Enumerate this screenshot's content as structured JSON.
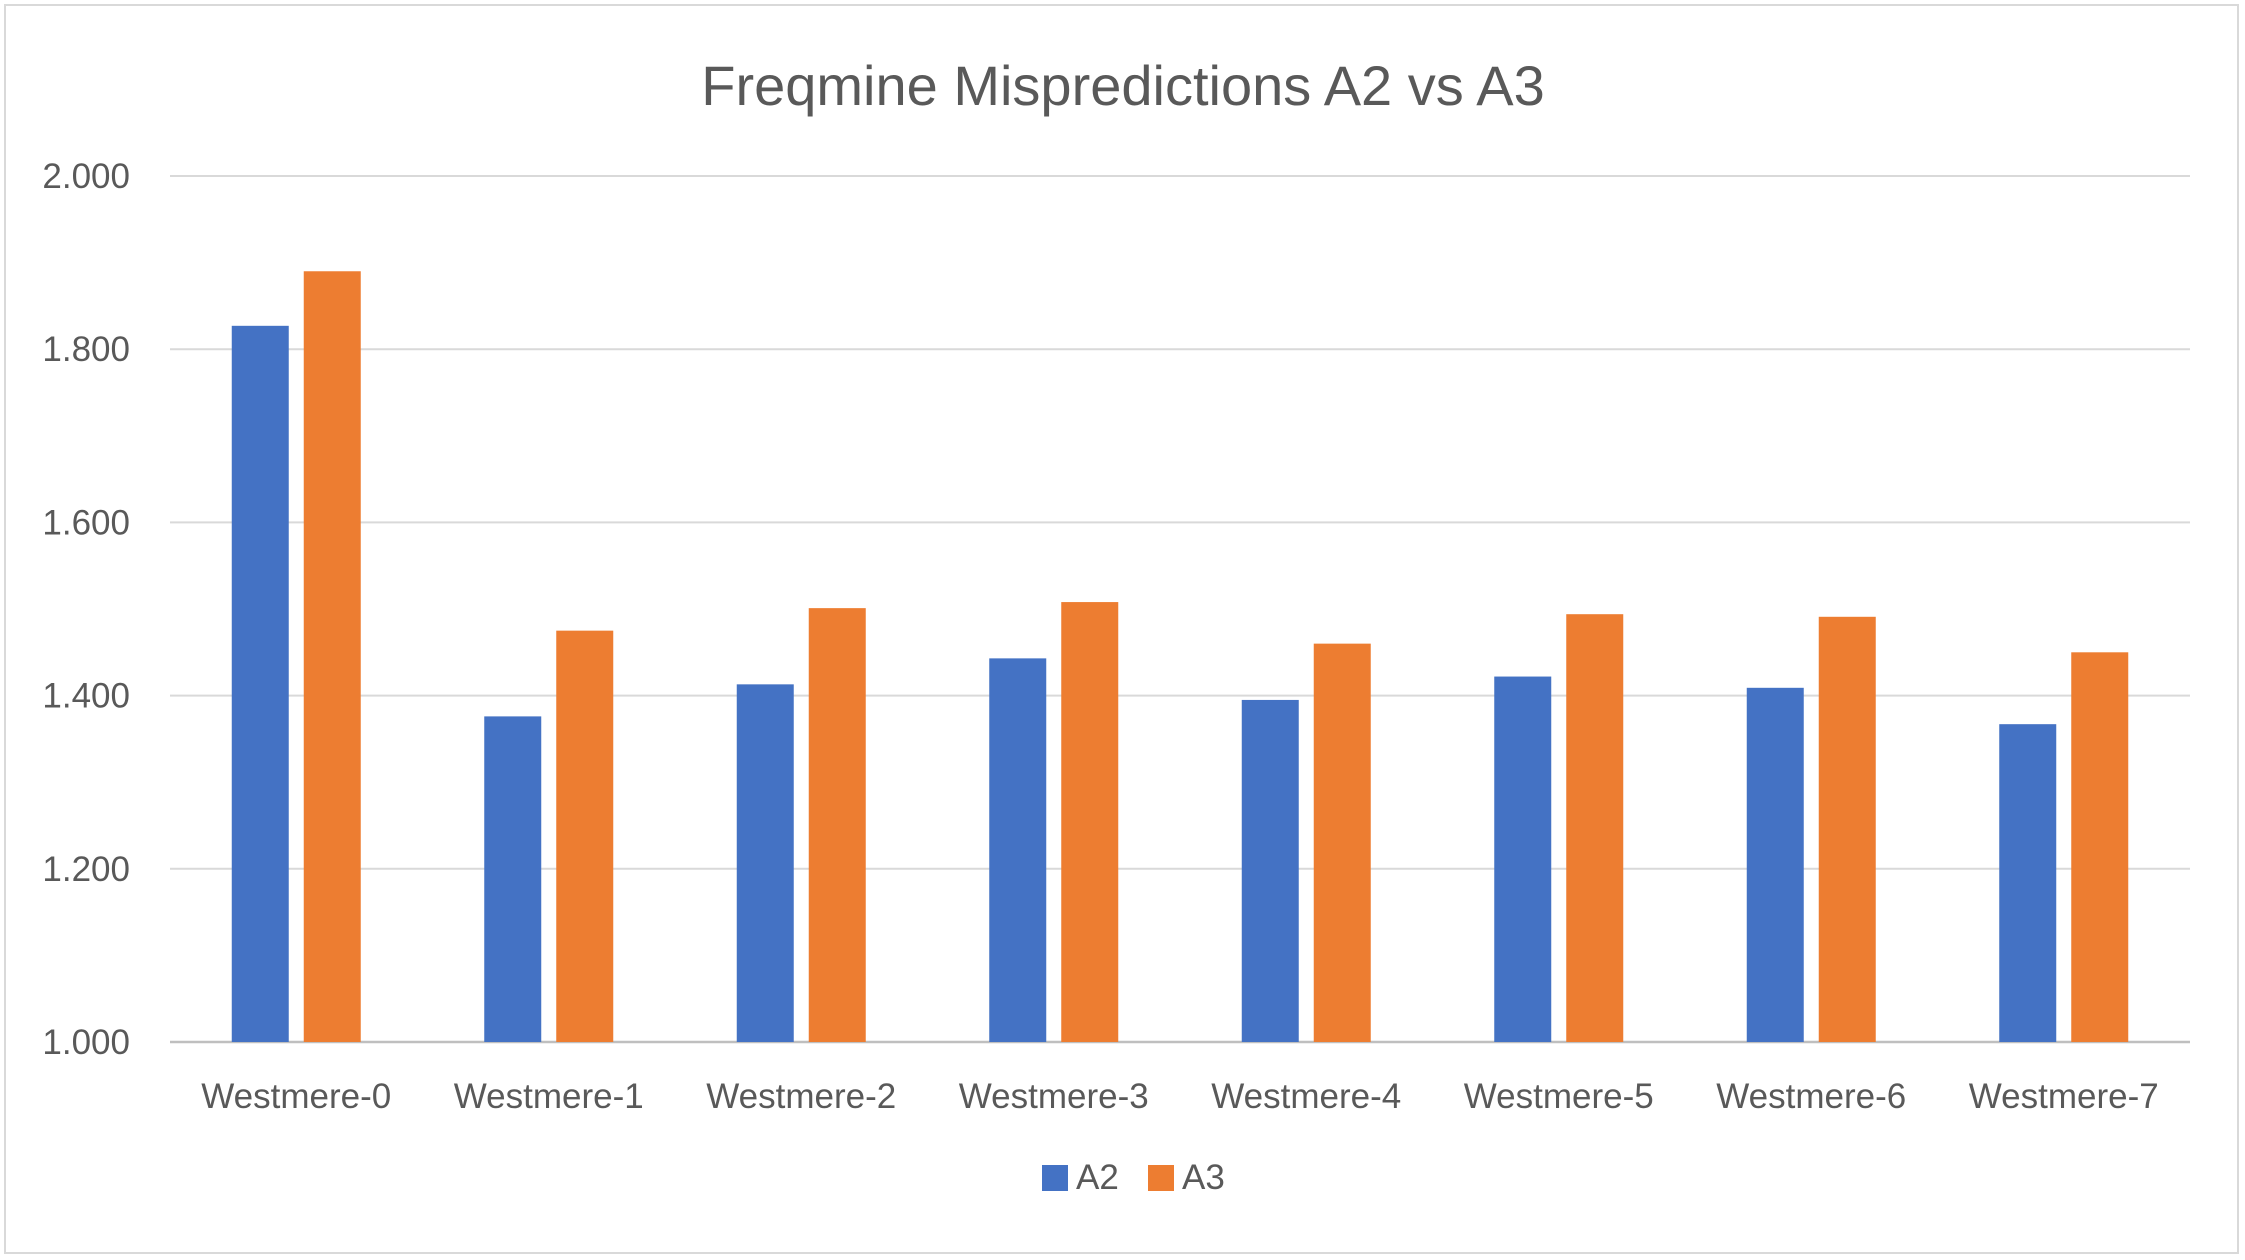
{
  "chart_data": {
    "type": "bar",
    "title": "Freqmine Mispredictions A2 vs A3",
    "xlabel": "",
    "ylabel": "",
    "categories": [
      "Westmere-0",
      "Westmere-1",
      "Westmere-2",
      "Westmere-3",
      "Westmere-4",
      "Westmere-5",
      "Westmere-6",
      "Westmere-7"
    ],
    "series": [
      {
        "name": "A2",
        "color": "#4472C4",
        "values": [
          1.827,
          1.376,
          1.413,
          1.443,
          1.395,
          1.422,
          1.409,
          1.367
        ]
      },
      {
        "name": "A3",
        "color": "#ED7D31",
        "values": [
          1.89,
          1.475,
          1.501,
          1.508,
          1.46,
          1.494,
          1.491,
          1.45
        ]
      }
    ],
    "ylim": [
      1.0,
      2.0
    ],
    "yticks": [
      "1.000",
      "1.200",
      "1.400",
      "1.600",
      "1.800",
      "2.000"
    ],
    "grid": true,
    "legend_position": "bottom"
  }
}
